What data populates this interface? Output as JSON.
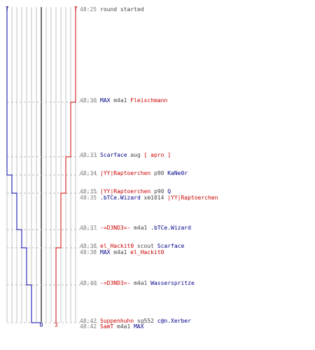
{
  "colors": {
    "blue_team": "#00008b",
    "red_team": "#cc0000",
    "timestamp": "#7a7a7a",
    "neutral_text": "#444444",
    "grid": "#c0c0c0"
  },
  "scores": {
    "blue_start": "7",
    "red_start": "7",
    "blue_end": "0",
    "red_end": "3"
  },
  "events": [
    {
      "time": "48:25",
      "segments": [
        {
          "text": "round started",
          "team": "neutral"
        }
      ]
    },
    {
      "time": "48:30",
      "segments": [
        {
          "text": "MAX",
          "team": "blue"
        },
        {
          "text": "m4a1",
          "team": "neutral"
        },
        {
          "text": "Fleischmann",
          "team": "red"
        }
      ]
    },
    {
      "time": "48:33",
      "segments": [
        {
          "text": "Scarface",
          "team": "blue"
        },
        {
          "text": "aug",
          "team": "neutral"
        },
        {
          "text": "[ apro ]",
          "team": "red"
        }
      ]
    },
    {
      "time": "48:34",
      "segments": [
        {
          "text": "|YY|Raptoerchen",
          "team": "red"
        },
        {
          "text": "p90",
          "team": "neutral"
        },
        {
          "text": "KaNe0r",
          "team": "blue"
        }
      ]
    },
    {
      "time": "48:35",
      "segments": [
        {
          "text": "|YY|Raptoerchen",
          "team": "red"
        },
        {
          "text": "p90",
          "team": "neutral"
        },
        {
          "text": "Q",
          "team": "blue"
        }
      ]
    },
    {
      "time": "48:35",
      "segments": [
        {
          "text": ".bTCe.Wizard",
          "team": "blue"
        },
        {
          "text": "xm1014",
          "team": "neutral"
        },
        {
          "text": "|YY|Raptoerchen",
          "team": "red"
        }
      ]
    },
    {
      "time": "48:37",
      "segments": [
        {
          "text": "-=D3ND3=-",
          "team": "red"
        },
        {
          "text": "m4a1",
          "team": "neutral"
        },
        {
          "text": ".bTCe.Wizard",
          "team": "blue"
        }
      ]
    },
    {
      "time": "48:38",
      "segments": [
        {
          "text": "el_Hackit0",
          "team": "red"
        },
        {
          "text": "scout",
          "team": "neutral"
        },
        {
          "text": "Scarface",
          "team": "blue"
        }
      ]
    },
    {
      "time": "48:38",
      "segments": [
        {
          "text": "MAX",
          "team": "blue"
        },
        {
          "text": "m4a1",
          "team": "neutral"
        },
        {
          "text": "el_Hackit0",
          "team": "red"
        }
      ]
    },
    {
      "time": "48:40",
      "segments": [
        {
          "text": "-=D3ND3=-",
          "team": "red"
        },
        {
          "text": "m4a1",
          "team": "neutral"
        },
        {
          "text": "Wasserspritze",
          "team": "blue"
        }
      ]
    },
    {
      "time": "48:42",
      "segments": [
        {
          "text": "Suppenhuhn",
          "team": "red"
        },
        {
          "text": "sg552",
          "team": "neutral"
        },
        {
          "text": "c@n.Xerber",
          "team": "blue"
        }
      ]
    },
    {
      "time": "48:42",
      "segments": [
        {
          "text": "SamT",
          "team": "red"
        },
        {
          "text": "m4a1",
          "team": "neutral"
        },
        {
          "text": "MAX",
          "team": "blue"
        }
      ]
    }
  ]
}
